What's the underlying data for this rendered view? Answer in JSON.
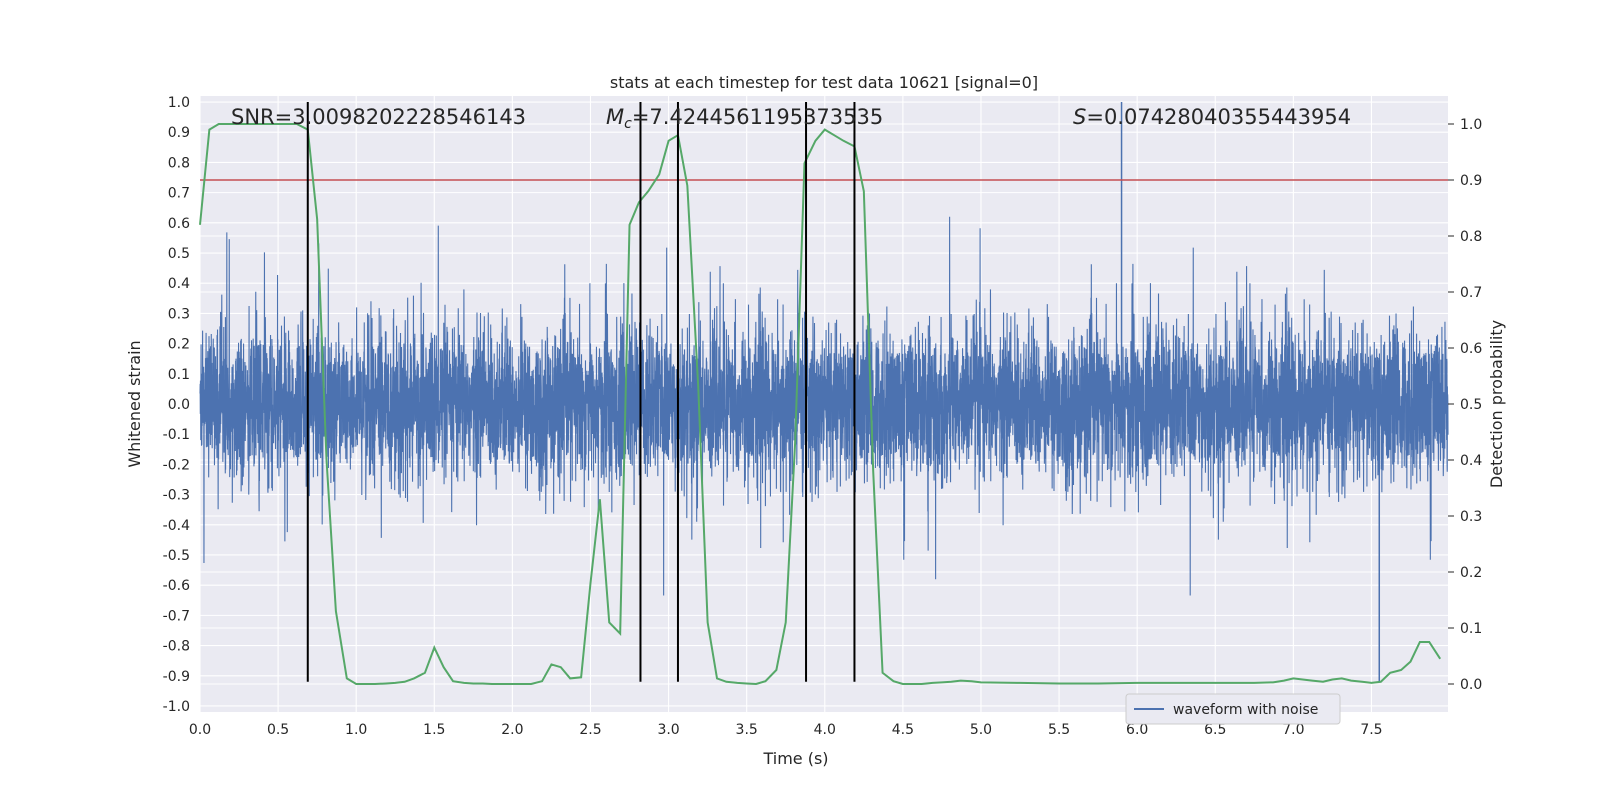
{
  "chart_data": {
    "type": "line",
    "title": "stats at each timestep for test data 10621 [signal=0]",
    "xlabel": "Time (s)",
    "ylabel": "Whitened strain",
    "y2label": "Detection probability",
    "xlim": [
      0.0,
      7.99
    ],
    "ylim": [
      -1.02,
      1.02
    ],
    "y2lim": [
      -0.05,
      1.05
    ],
    "xticks": [
      "0.0",
      "0.5",
      "1.0",
      "1.5",
      "2.0",
      "2.5",
      "3.0",
      "3.5",
      "4.0",
      "4.5",
      "5.0",
      "5.5",
      "6.0",
      "6.5",
      "7.0",
      "7.5"
    ],
    "yticks": [
      "-1.0",
      "-0.9",
      "-0.8",
      "-0.7",
      "-0.6",
      "-0.5",
      "-0.4",
      "-0.3",
      "-0.2",
      "-0.1",
      "0.0",
      "0.1",
      "0.2",
      "0.3",
      "0.4",
      "0.5",
      "0.6",
      "0.7",
      "0.8",
      "0.9",
      "1.0"
    ],
    "y2ticks": [
      "0.0",
      "0.1",
      "0.2",
      "0.3",
      "0.4",
      "0.5",
      "0.6",
      "0.7",
      "0.8",
      "0.9",
      "1.0"
    ],
    "grid": true,
    "legend": {
      "placement": "lower-right",
      "entries": [
        "waveform with noise"
      ]
    },
    "annotations": {
      "snr": "SNR=3.0098202228546143",
      "mc_symbol": "M",
      "mc_sub": "c",
      "mc_value": "=7.4244561195373535",
      "s_symbol": "S",
      "s_value": "=0.07428040355443954"
    },
    "series": [
      {
        "name": "waveform with noise",
        "color": "#4c72b0",
        "axis": "left",
        "kind": "noise",
        "samples": 8192,
        "core_amplitude": 0.22,
        "spike_max": 0.62,
        "spike_min": -0.74,
        "notable_peak": {
          "x": 5.9,
          "y": 1.0
        },
        "notable_trough": {
          "x": 7.55,
          "y": -0.92
        }
      },
      {
        "name": "Detection probability",
        "color": "#55a868",
        "axis": "right",
        "x": [
          0.0,
          0.06,
          0.12,
          0.19,
          0.25,
          0.31,
          0.37,
          0.44,
          0.5,
          0.56,
          0.62,
          0.69,
          0.75,
          0.81,
          0.87,
          0.94,
          1.0,
          1.06,
          1.12,
          1.19,
          1.25,
          1.31,
          1.37,
          1.44,
          1.5,
          1.56,
          1.62,
          1.69,
          1.75,
          1.81,
          1.87,
          1.94,
          2.0,
          2.06,
          2.12,
          2.19,
          2.25,
          2.31,
          2.37,
          2.44,
          2.5,
          2.56,
          2.62,
          2.69,
          2.75,
          2.81,
          2.87,
          2.94,
          3.0,
          3.06,
          3.12,
          3.19,
          3.25,
          3.31,
          3.37,
          3.44,
          3.5,
          3.56,
          3.62,
          3.69,
          3.75,
          3.81,
          3.87,
          3.94,
          4.0,
          4.06,
          4.12,
          4.19,
          4.25,
          4.31,
          4.37,
          4.44,
          4.5,
          4.56,
          4.62,
          4.69,
          4.75,
          4.81,
          4.87,
          4.94,
          5.0,
          5.25,
          5.5,
          5.75,
          6.0,
          6.25,
          6.5,
          6.75,
          6.87,
          6.94,
          7.0,
          7.06,
          7.12,
          7.19,
          7.25,
          7.31,
          7.37,
          7.44,
          7.5,
          7.56,
          7.62,
          7.69,
          7.75,
          7.81,
          7.87,
          7.94
        ],
        "y": [
          0.82,
          0.99,
          1.0,
          1.0,
          1.0,
          1.0,
          1.0,
          1.0,
          1.0,
          1.0,
          1.0,
          0.99,
          0.83,
          0.4,
          0.13,
          0.01,
          0.0,
          0.0,
          0.0,
          0.001,
          0.002,
          0.004,
          0.01,
          0.02,
          0.065,
          0.03,
          0.005,
          0.002,
          0.001,
          0.001,
          0.0,
          0.0,
          0.0,
          0.0,
          0.0,
          0.005,
          0.035,
          0.03,
          0.01,
          0.012,
          0.18,
          0.33,
          0.11,
          0.09,
          0.82,
          0.86,
          0.88,
          0.91,
          0.97,
          0.98,
          0.89,
          0.53,
          0.11,
          0.01,
          0.004,
          0.002,
          0.001,
          0.0,
          0.005,
          0.025,
          0.11,
          0.43,
          0.93,
          0.97,
          0.99,
          0.98,
          0.97,
          0.96,
          0.88,
          0.38,
          0.02,
          0.005,
          0.0,
          0.0,
          0.0,
          0.002,
          0.003,
          0.004,
          0.006,
          0.005,
          0.003,
          0.002,
          0.001,
          0.001,
          0.002,
          0.002,
          0.002,
          0.002,
          0.003,
          0.006,
          0.01,
          0.008,
          0.006,
          0.004,
          0.008,
          0.01,
          0.006,
          0.004,
          0.002,
          0.004,
          0.02,
          0.025,
          0.04,
          0.075,
          0.075,
          0.045
        ]
      }
    ],
    "threshold": {
      "axis": "right",
      "value": 0.9,
      "color": "#c44e52"
    },
    "vertical_markers": {
      "x": [
        0.69,
        2.82,
        3.06,
        3.88,
        4.19
      ],
      "ymin": -0.92,
      "ymax": 1.0,
      "color": "#000000"
    }
  }
}
